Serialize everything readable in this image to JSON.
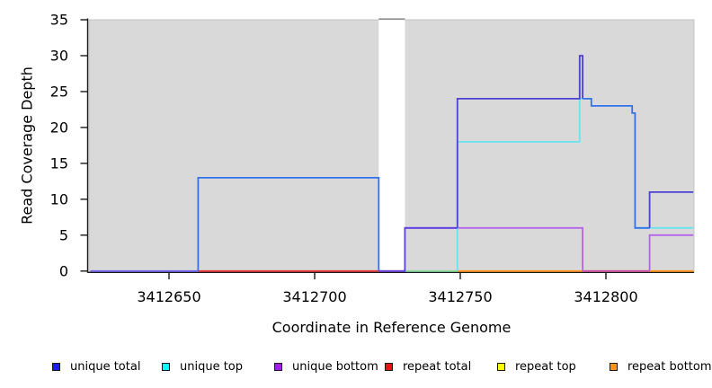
{
  "figure": {
    "background": "#ffffff",
    "plot_background": "#d9d9d9",
    "plot_border": "#c4c4c4",
    "masked_band_top_bar": "#8d8d8d",
    "axis_color": "#1a1a1a"
  },
  "chart_data": {
    "type": "line",
    "subtype": "step-coverage",
    "title": "",
    "xlabel": "Coordinate in Reference Genome",
    "ylabel": "Read Coverage Depth",
    "xlim": [
      3412623,
      3412830
    ],
    "ylim": [
      0,
      35
    ],
    "x_ticks": [
      3412650,
      3412700,
      3412750,
      3412800
    ],
    "y_ticks": [
      0,
      5,
      10,
      15,
      20,
      25,
      30,
      35
    ],
    "grid": false,
    "legend_position": "bottom",
    "masked_region": {
      "start": 3412722,
      "end": 3412731,
      "fill": "#ffffff"
    },
    "series": [
      {
        "name": "unique total",
        "color": "#0000ee",
        "steps": [
          [
            3412623,
            3412660,
            0
          ],
          [
            3412660,
            3412722,
            13
          ],
          [
            3412722,
            3412731,
            0
          ],
          [
            3412731,
            3412749,
            6
          ],
          [
            3412749,
            3412791,
            24
          ],
          [
            3412791,
            3412792,
            30
          ],
          [
            3412792,
            3412795,
            24
          ],
          [
            3412795,
            3412809,
            23
          ],
          [
            3412809,
            3412810,
            22
          ],
          [
            3412810,
            3412815,
            6
          ],
          [
            3412815,
            3412830,
            11
          ]
        ]
      },
      {
        "name": "unique top",
        "color": "#00ffff",
        "steps": [
          [
            3412623,
            3412660,
            0
          ],
          [
            3412660,
            3412722,
            13
          ],
          [
            3412722,
            3412749,
            0
          ],
          [
            3412749,
            3412791,
            18
          ],
          [
            3412791,
            3412795,
            24
          ],
          [
            3412795,
            3412809,
            23
          ],
          [
            3412809,
            3412810,
            22
          ],
          [
            3412810,
            3412830,
            6
          ]
        ]
      },
      {
        "name": "unique bottom",
        "color": "#a020f0",
        "steps": [
          [
            3412623,
            3412731,
            0
          ],
          [
            3412731,
            3412792,
            6
          ],
          [
            3412792,
            3412815,
            0
          ],
          [
            3412815,
            3412830,
            5
          ]
        ]
      },
      {
        "name": "repeat total",
        "color": "#ee0000",
        "steps": [
          [
            3412660,
            3412731,
            0
          ]
        ]
      },
      {
        "name": "repeat top",
        "color": "#ffff00",
        "steps": [
          [
            3412731,
            3412749,
            0
          ]
        ]
      },
      {
        "name": "repeat bottom",
        "color": "#ff9912",
        "steps": [
          [
            3412749,
            3412830,
            0
          ]
        ]
      }
    ],
    "visible_segments": [
      {
        "color": "#6F61EC",
        "points": [
          [
            3412623,
            0
          ],
          [
            3412660,
            0
          ]
        ]
      },
      {
        "color": "#E73535",
        "points": [
          [
            3412660,
            0
          ],
          [
            3412731,
            0
          ]
        ]
      },
      {
        "color": "#86D89B",
        "points": [
          [
            3412731,
            0
          ],
          [
            3412749,
            0
          ]
        ]
      },
      {
        "color": "#FD9415",
        "points": [
          [
            3412749,
            0
          ],
          [
            3412830,
            0
          ]
        ]
      },
      {
        "color": "#C24FAC",
        "points": [
          [
            3412792,
            0
          ],
          [
            3412815,
            0
          ]
        ]
      },
      {
        "color": "#B564E8",
        "points": [
          [
            3412731,
            6
          ],
          [
            3412792,
            6
          ],
          [
            3412792,
            0
          ]
        ]
      },
      {
        "color": "#B564E8",
        "points": [
          [
            3412815,
            0
          ],
          [
            3412815,
            5
          ],
          [
            3412830,
            5
          ]
        ]
      },
      {
        "color": "#68E3EF",
        "points": [
          [
            3412749,
            0
          ],
          [
            3412749,
            18
          ],
          [
            3412791,
            18
          ],
          [
            3412791,
            24
          ],
          [
            3412792,
            24
          ]
        ]
      },
      {
        "color": "#68E3EF",
        "points": [
          [
            3412810,
            6
          ],
          [
            3412830,
            6
          ]
        ]
      },
      {
        "color": "#3273EA",
        "points": [
          [
            3412660,
            0
          ],
          [
            3412660,
            13
          ],
          [
            3412722,
            13
          ],
          [
            3412722,
            0
          ]
        ]
      },
      {
        "color": "#5C3FE3",
        "points": [
          [
            3412722,
            0
          ],
          [
            3412731,
            0
          ],
          [
            3412731,
            6
          ],
          [
            3412749,
            6
          ]
        ]
      },
      {
        "color": "#4C41D6",
        "points": [
          [
            3412749,
            6
          ],
          [
            3412749,
            24
          ],
          [
            3412791,
            24
          ],
          [
            3412791,
            30
          ],
          [
            3412792,
            30
          ],
          [
            3412792,
            24
          ]
        ]
      },
      {
        "color": "#3273EA",
        "points": [
          [
            3412792,
            24
          ],
          [
            3412795,
            24
          ],
          [
            3412795,
            23
          ],
          [
            3412809,
            23
          ],
          [
            3412809,
            22
          ],
          [
            3412810,
            22
          ],
          [
            3412810,
            6
          ],
          [
            3412815,
            6
          ]
        ]
      },
      {
        "color": "#4C41D6",
        "points": [
          [
            3412815,
            6
          ],
          [
            3412815,
            11
          ],
          [
            3412830,
            11
          ]
        ]
      }
    ]
  },
  "legend": {
    "items": [
      {
        "label": "unique total",
        "color": "#1c1cf0"
      },
      {
        "label": "unique top",
        "color": "#00ffff"
      },
      {
        "label": "unique bottom",
        "color": "#a21fea"
      },
      {
        "label": "repeat total",
        "color": "#ee1111"
      },
      {
        "label": "repeat top",
        "color": "#ffff00"
      },
      {
        "label": "repeat bottom",
        "color": "#f59520"
      }
    ]
  }
}
